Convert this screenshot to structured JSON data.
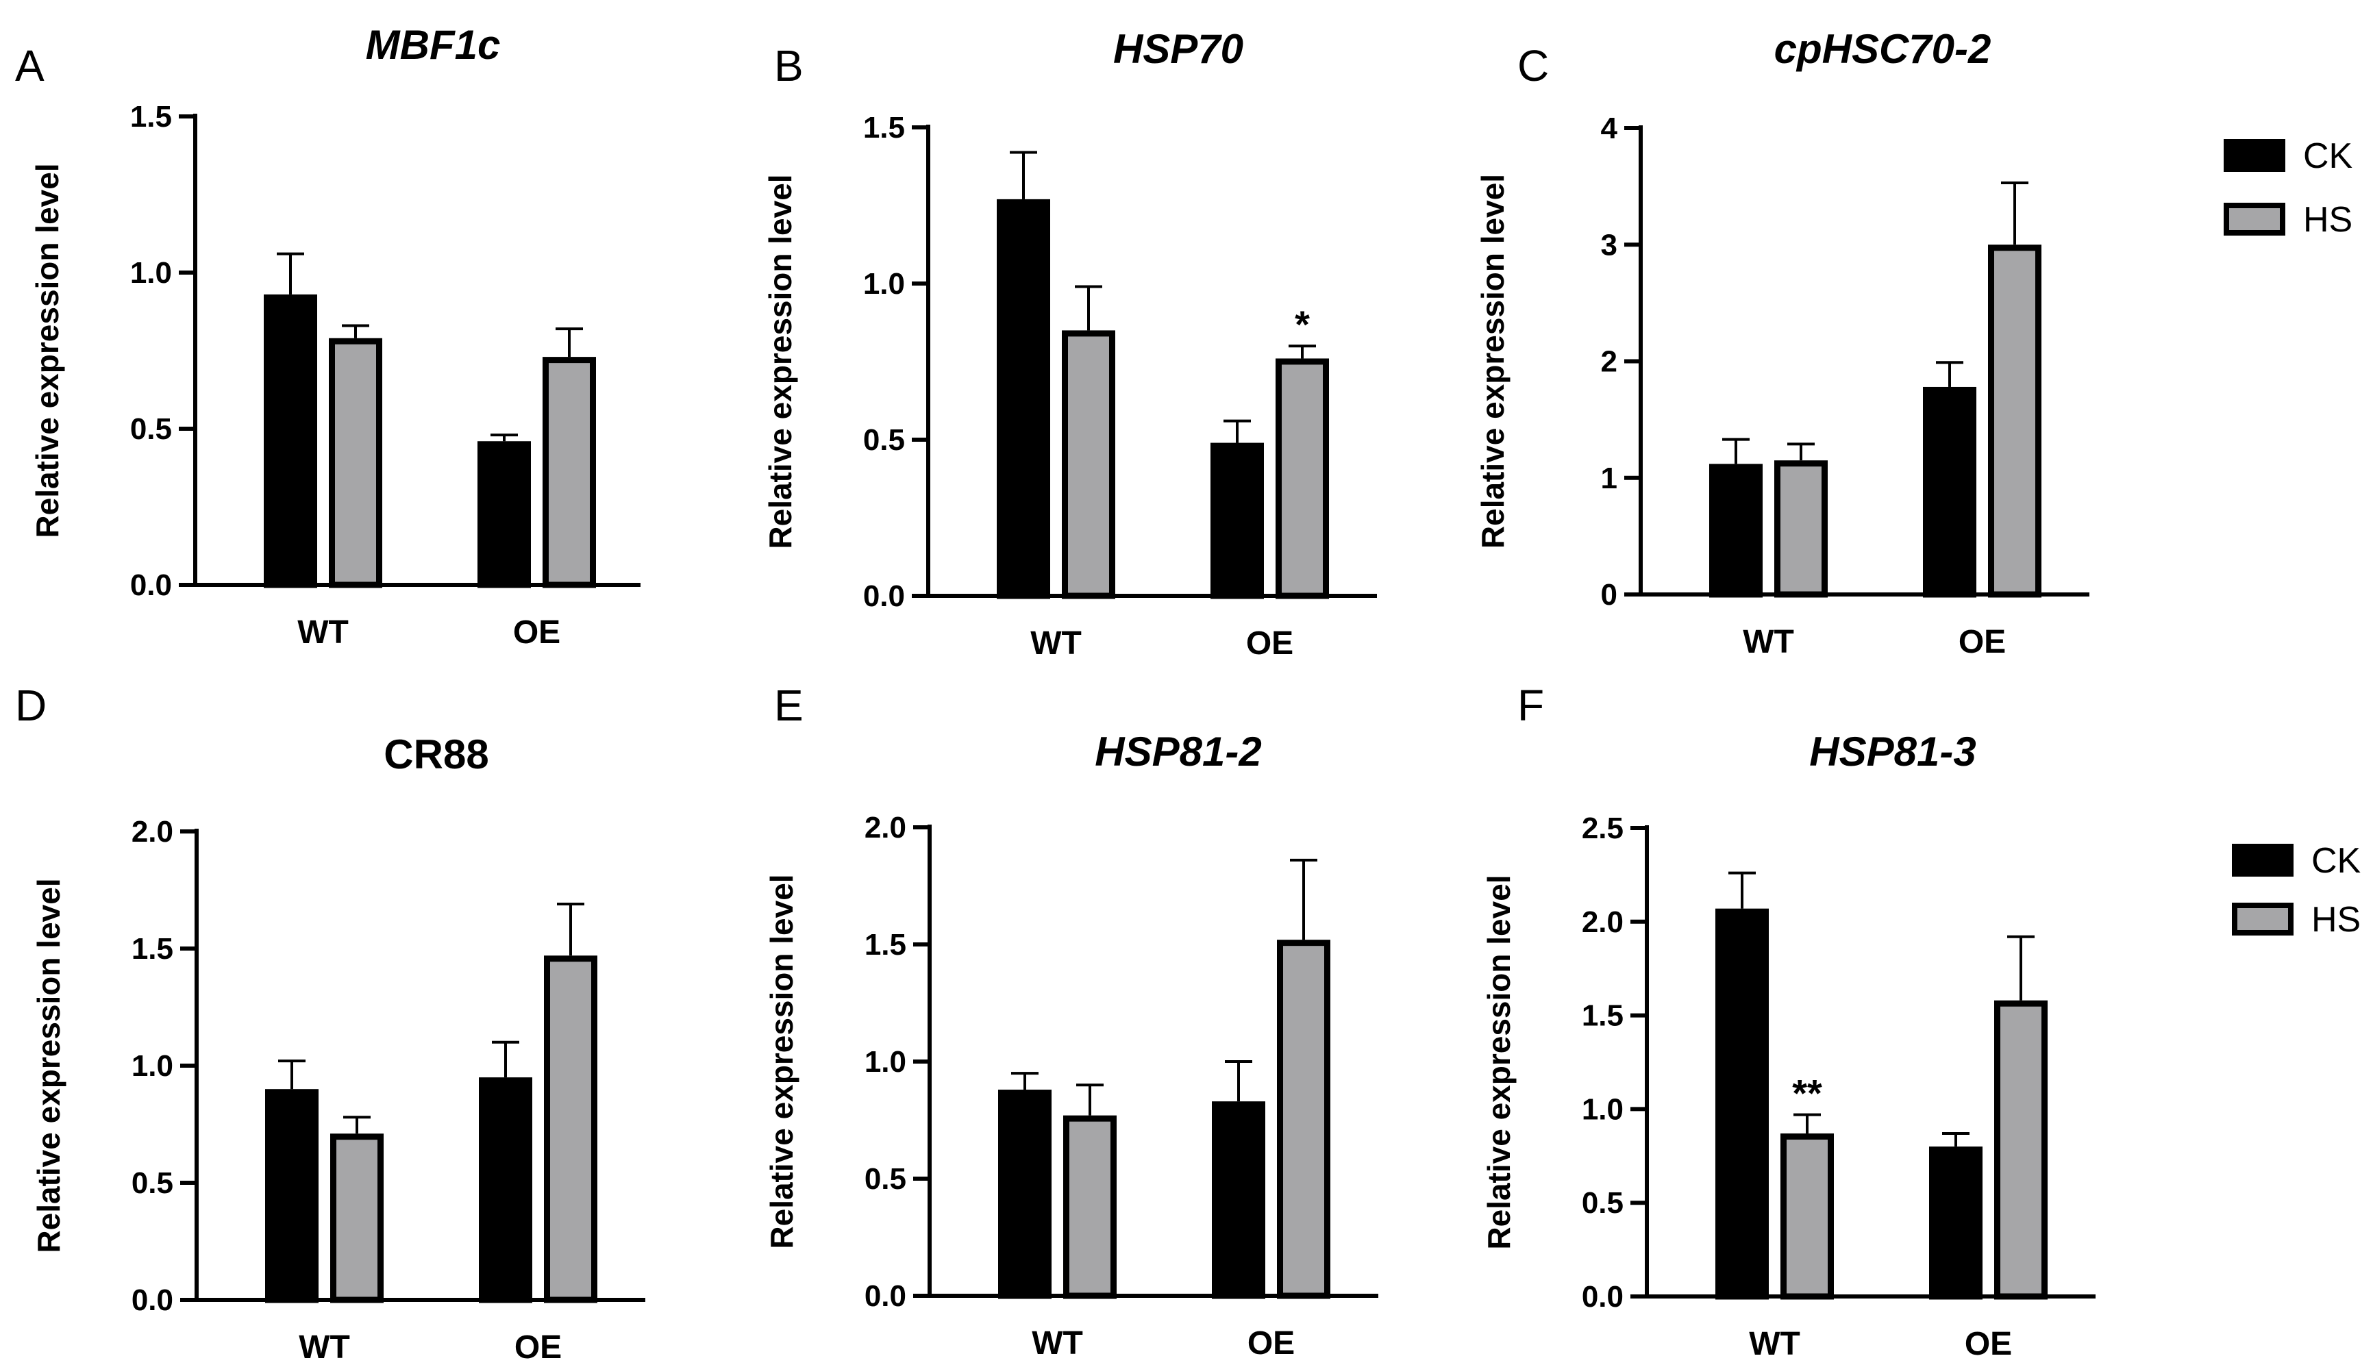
{
  "figure": {
    "legends": [
      {
        "items": [
          {
            "label": "CK",
            "color": "#000000"
          },
          {
            "label": "HS",
            "color": "#a6a6a8"
          }
        ]
      },
      {
        "items": [
          {
            "label": "CK",
            "color": "#000000"
          },
          {
            "label": "HS",
            "color": "#a6a6a8"
          }
        ]
      }
    ]
  },
  "chart_data": [
    {
      "panel": "A",
      "type": "bar",
      "title": "MBF1c",
      "title_italic": true,
      "xlabel": "",
      "ylabel": "Relative expression level",
      "categories": [
        "WT",
        "OE"
      ],
      "ylim": [
        0,
        1.5
      ],
      "yticks": [
        "0.0",
        "0.5",
        "1.0",
        "1.5"
      ],
      "series": [
        {
          "name": "CK",
          "values": [
            0.93,
            0.46
          ],
          "errors": [
            0.13,
            0.02
          ],
          "sig": [
            "",
            ""
          ]
        },
        {
          "name": "HS",
          "values": [
            0.79,
            0.73
          ],
          "errors": [
            0.04,
            0.09
          ],
          "sig": [
            "",
            ""
          ]
        }
      ]
    },
    {
      "panel": "B",
      "type": "bar",
      "title": "HSP70",
      "title_italic": true,
      "xlabel": "",
      "ylabel": "Relative expression level",
      "categories": [
        "WT",
        "OE"
      ],
      "ylim": [
        0,
        1.5
      ],
      "yticks": [
        "0.0",
        "0.5",
        "1.0",
        "1.5"
      ],
      "series": [
        {
          "name": "CK",
          "values": [
            1.27,
            0.49
          ],
          "errors": [
            0.15,
            0.07
          ],
          "sig": [
            "",
            ""
          ]
        },
        {
          "name": "HS",
          "values": [
            0.85,
            0.76
          ],
          "errors": [
            0.14,
            0.04
          ],
          "sig": [
            "",
            "*"
          ]
        }
      ]
    },
    {
      "panel": "C",
      "type": "bar",
      "title": "cpHSC70-2",
      "title_italic": true,
      "xlabel": "",
      "ylabel": "Relative expression level",
      "categories": [
        "WT",
        "OE"
      ],
      "ylim": [
        0,
        4
      ],
      "yticks": [
        "0",
        "1",
        "2",
        "3",
        "4"
      ],
      "series": [
        {
          "name": "CK",
          "values": [
            1.12,
            1.78
          ],
          "errors": [
            0.21,
            0.21
          ],
          "sig": [
            "",
            ""
          ]
        },
        {
          "name": "HS",
          "values": [
            1.15,
            3.0
          ],
          "errors": [
            0.14,
            0.53
          ],
          "sig": [
            "",
            ""
          ]
        }
      ]
    },
    {
      "panel": "D",
      "type": "bar",
      "title": "CR88",
      "title_italic": false,
      "xlabel": "",
      "ylabel": "Relative expression level",
      "categories": [
        "WT",
        "OE"
      ],
      "ylim": [
        0,
        2.0
      ],
      "yticks": [
        "0.0",
        "0.5",
        "1.0",
        "1.5",
        "2.0"
      ],
      "series": [
        {
          "name": "CK",
          "values": [
            0.9,
            0.95
          ],
          "errors": [
            0.12,
            0.15
          ],
          "sig": [
            "",
            ""
          ]
        },
        {
          "name": "HS",
          "values": [
            0.71,
            1.47
          ],
          "errors": [
            0.07,
            0.22
          ],
          "sig": [
            "",
            ""
          ]
        }
      ]
    },
    {
      "panel": "E",
      "type": "bar",
      "title": "HSP81-2",
      "title_italic": true,
      "xlabel": "",
      "ylabel": "Relative expression level",
      "categories": [
        "WT",
        "OE"
      ],
      "ylim": [
        0,
        2.0
      ],
      "yticks": [
        "0.0",
        "0.5",
        "1.0",
        "1.5",
        "2.0"
      ],
      "series": [
        {
          "name": "CK",
          "values": [
            0.88,
            0.83
          ],
          "errors": [
            0.07,
            0.17
          ],
          "sig": [
            "",
            ""
          ]
        },
        {
          "name": "HS",
          "values": [
            0.77,
            1.52
          ],
          "errors": [
            0.13,
            0.34
          ],
          "sig": [
            "",
            ""
          ]
        }
      ]
    },
    {
      "panel": "F",
      "type": "bar",
      "title": "HSP81-3",
      "title_italic": true,
      "xlabel": "",
      "ylabel": "Relative expression level",
      "categories": [
        "WT",
        "OE"
      ],
      "ylim": [
        0,
        2.5
      ],
      "yticks": [
        "0.0",
        "0.5",
        "1.0",
        "1.5",
        "2.0",
        "2.5"
      ],
      "series": [
        {
          "name": "CK",
          "values": [
            2.07,
            0.8
          ],
          "errors": [
            0.19,
            0.07
          ],
          "sig": [
            "",
            ""
          ]
        },
        {
          "name": "HS",
          "values": [
            0.87,
            1.58
          ],
          "errors": [
            0.1,
            0.34
          ],
          "sig": [
            "**",
            ""
          ]
        }
      ]
    }
  ]
}
